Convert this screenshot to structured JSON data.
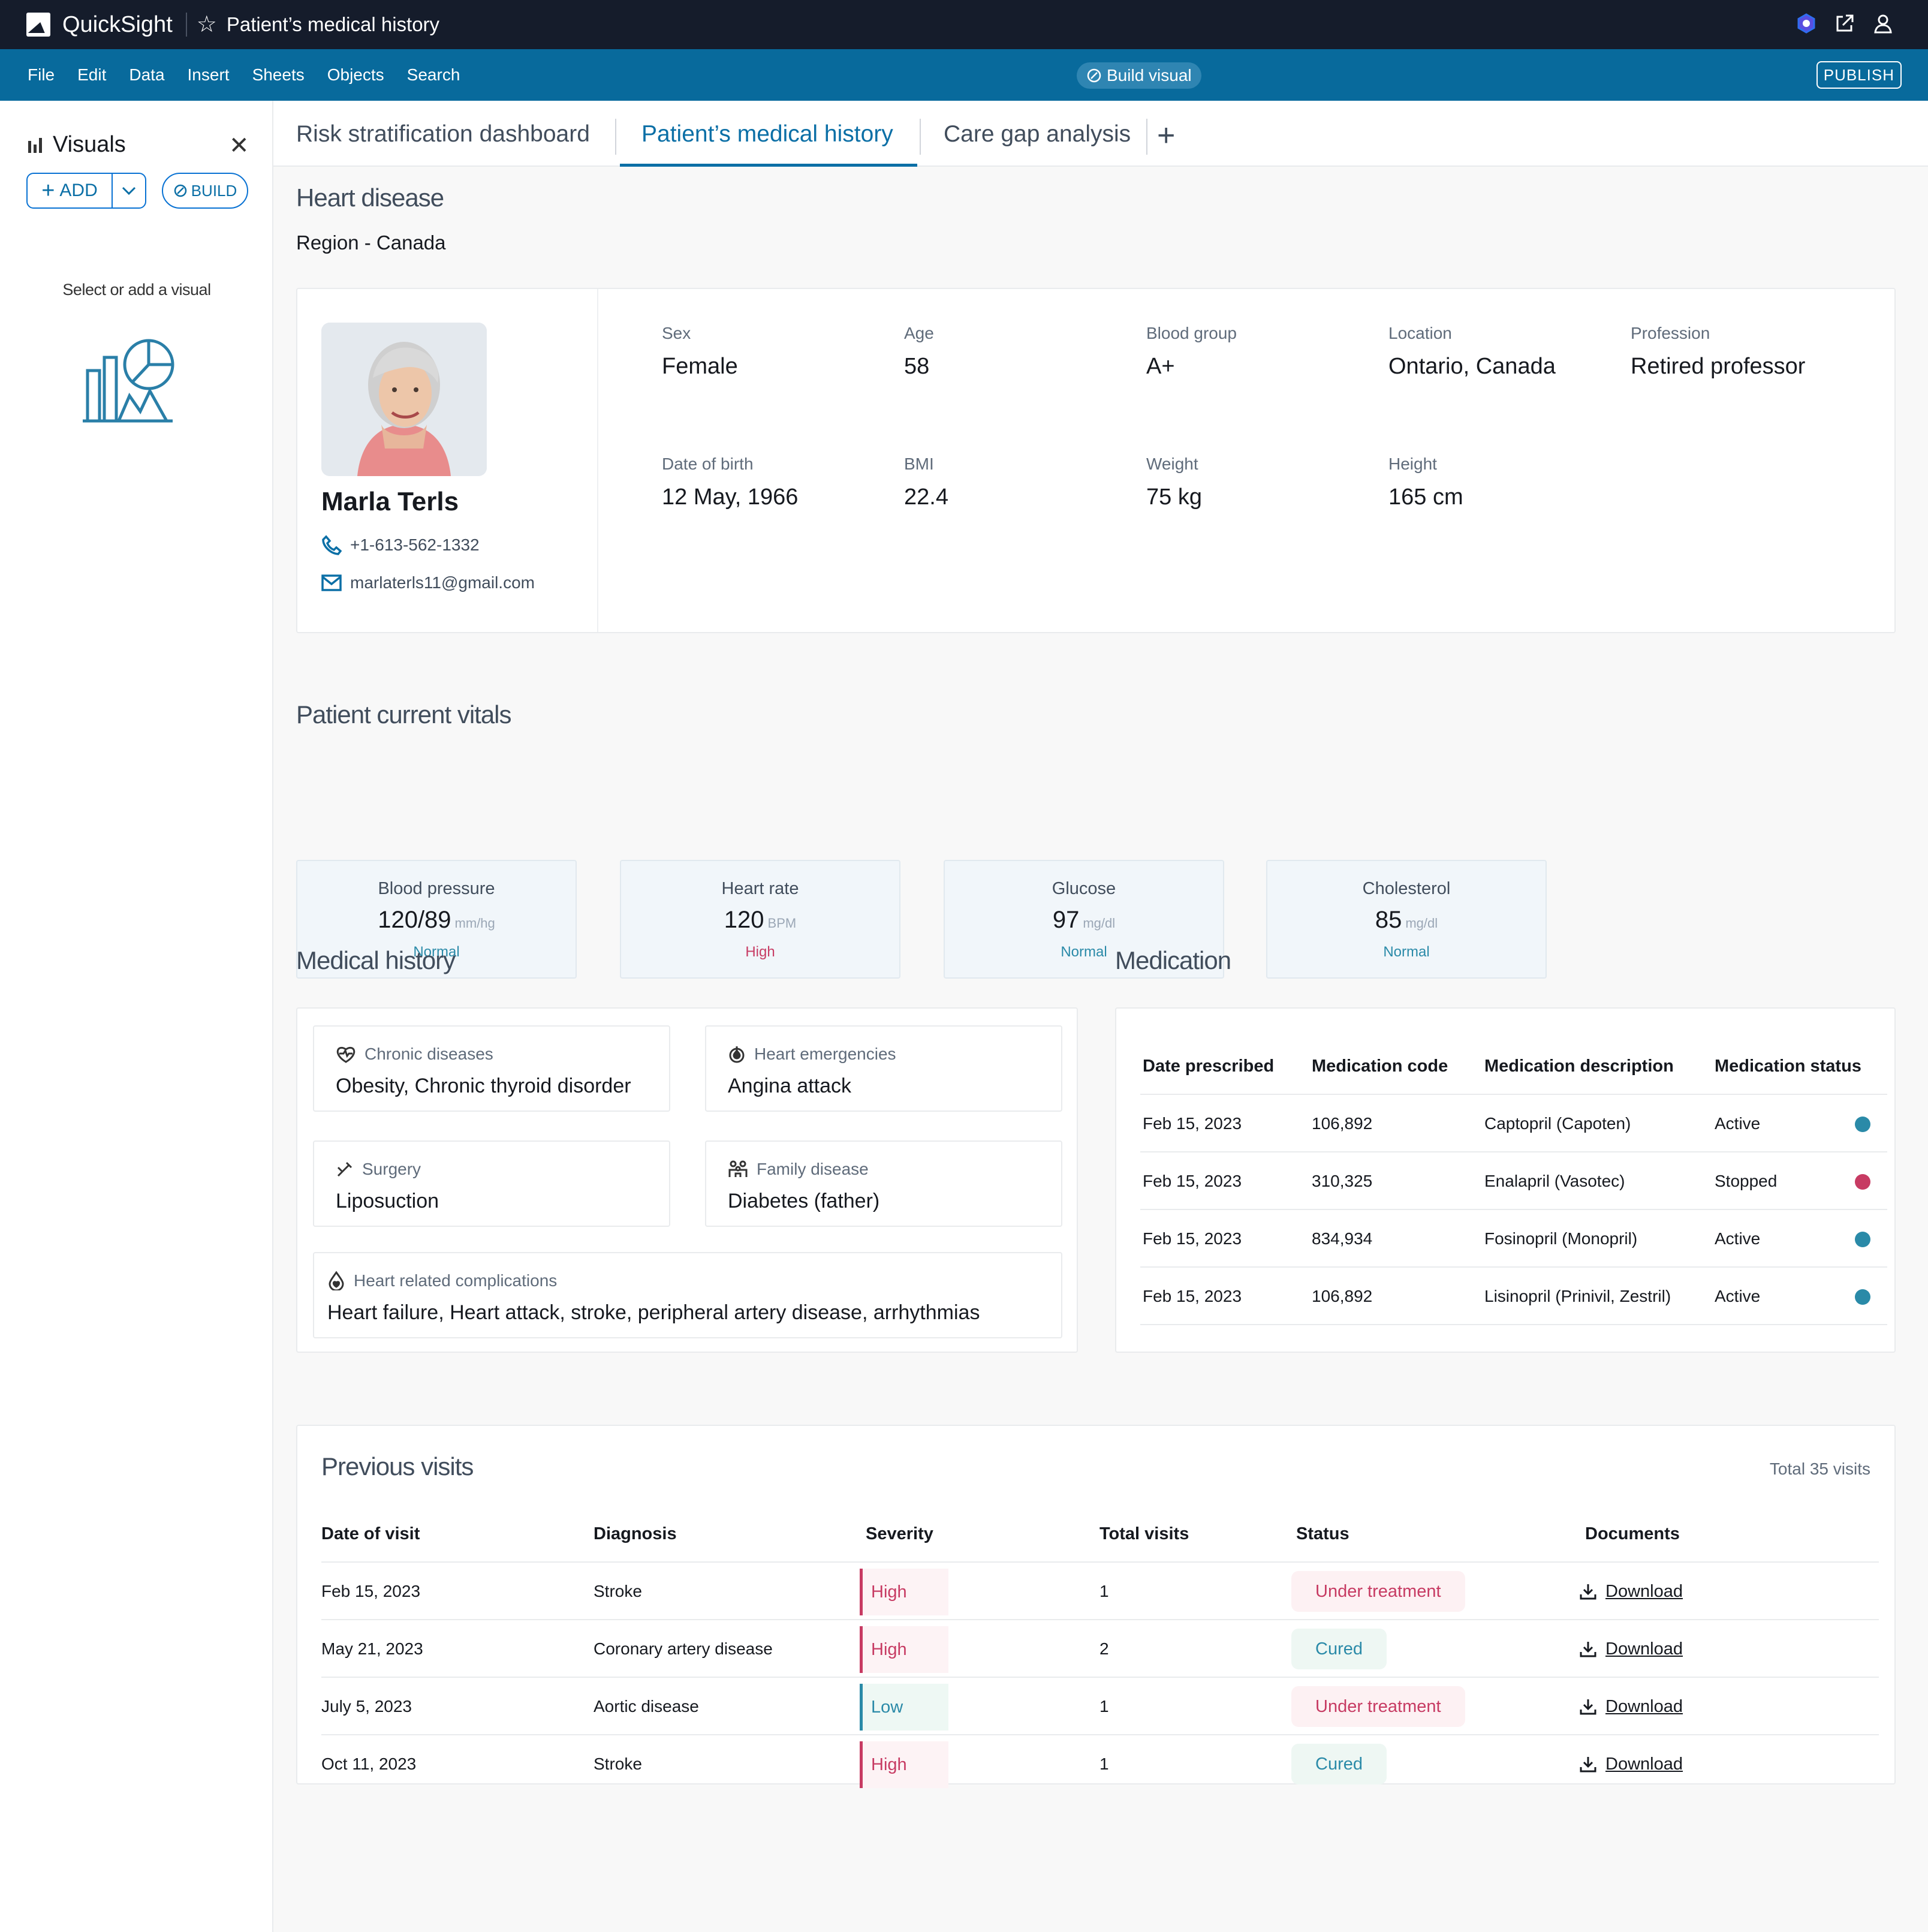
{
  "titlebar": {
    "app_name": "QuickSight",
    "doc_title": "Patient’s medical history"
  },
  "menubar": {
    "items": [
      "File",
      "Edit",
      "Data",
      "Insert",
      "Sheets",
      "Objects",
      "Search"
    ],
    "build_visual": "Build visual",
    "publish": "PUBLISH"
  },
  "sidebar": {
    "title": "Visuals",
    "add_label": "ADD",
    "build_label": "BUILD",
    "hint": "Select or add a visual"
  },
  "tabs": [
    "Risk stratification dashboard",
    "Patient’s medical history",
    "Care gap analysis"
  ],
  "header": {
    "title": "Heart disease",
    "region": "Region - Canada"
  },
  "patient": {
    "name": "Marla Terls",
    "phone": "+1-613-562-1332",
    "email": "marlaterls11@gmail.com",
    "fields": [
      {
        "label": "Sex",
        "value": "Female"
      },
      {
        "label": "Age",
        "value": "58"
      },
      {
        "label": "Blood group",
        "value": "A+"
      },
      {
        "label": "Location",
        "value": "Ontario, Canada"
      },
      {
        "label": "Profession",
        "value": "Retired professor"
      },
      {
        "label": "Date of birth",
        "value": "12 May, 1966"
      },
      {
        "label": "BMI",
        "value": "22.4"
      },
      {
        "label": "Weight",
        "value": "75 kg"
      },
      {
        "label": "Height",
        "value": "165 cm"
      }
    ]
  },
  "vitals": {
    "title": "Patient current vitals",
    "items": [
      {
        "label": "Blood pressure",
        "value": "120/89",
        "unit": "mm/hg",
        "status": "Normal",
        "status_color": "#2a8aa8"
      },
      {
        "label": "Heart rate",
        "value": "120",
        "unit": "BPM",
        "status": "High",
        "status_color": "#c73b63"
      },
      {
        "label": "Glucose",
        "value": "97",
        "unit": "mg/dl",
        "status": "Normal",
        "status_color": "#2a8aa8"
      },
      {
        "label": "Cholesterol",
        "value": "85",
        "unit": "mg/dl",
        "status": "Normal",
        "status_color": "#2a8aa8"
      }
    ]
  },
  "history": {
    "title": "Medical history",
    "items": [
      {
        "label": "Chronic diseases",
        "value": "Obesity, Chronic thyroid disorder",
        "icon": "heart-pulse-icon"
      },
      {
        "label": "Heart emergencies",
        "value": "Angina attack",
        "icon": "emergency-icon"
      },
      {
        "label": "Surgery",
        "value": "Liposuction",
        "icon": "scalpel-icon"
      },
      {
        "label": "Family disease",
        "value": "Diabetes (father)",
        "icon": "family-icon"
      },
      {
        "label": "Heart related complications",
        "value": "Heart failure, Heart attack, stroke, peripheral artery disease, arrhythmias",
        "icon": "drop-heart-icon"
      }
    ]
  },
  "medication": {
    "title": "Medication",
    "headers": [
      "Date prescribed",
      "Medication code",
      "Medication description",
      "Medication status"
    ],
    "rows": [
      {
        "date": "Feb 15, 2023",
        "code": "106,892",
        "description": "Captopril (Capoten)",
        "status": "Active",
        "dot_color": "#2a8aa8"
      },
      {
        "date": "Feb 15, 2023",
        "code": "310,325",
        "description": "Enalapril (Vasotec)",
        "status": "Stopped",
        "dot_color": "#c73b63"
      },
      {
        "date": "Feb 15, 2023",
        "code": "834,934",
        "description": "Fosinopril (Monopril)",
        "status": "Active",
        "dot_color": "#2a8aa8"
      },
      {
        "date": "Feb 15, 2023",
        "code": "106,892",
        "description": "Lisinopril (Prinivil, Zestril)",
        "status": "Active",
        "dot_color": "#2a8aa8"
      }
    ]
  },
  "visits": {
    "title": "Previous visits",
    "total": "Total 35 visits",
    "headers": [
      "Date of visit",
      "Diagnosis",
      "Severity",
      "Total visits",
      "Status",
      "Documents"
    ],
    "rows": [
      {
        "date": "Feb 15, 2023",
        "diagnosis": "Stroke",
        "severity": "High",
        "total": "1",
        "status": "Under treatment",
        "document": "Download"
      },
      {
        "date": "May 21, 2023",
        "diagnosis": "Coronary artery disease",
        "severity": "High",
        "total": "2",
        "status": "Cured",
        "document": "Download"
      },
      {
        "date": "July 5, 2023",
        "diagnosis": "Aortic disease",
        "severity": "Low",
        "total": "1",
        "status": "Under treatment",
        "document": "Download"
      },
      {
        "date": "Oct 11, 2023",
        "diagnosis": "Stroke",
        "severity": "High",
        "total": "1",
        "status": "Cured",
        "document": "Download"
      }
    ],
    "colors": {
      "high": "#c73b63",
      "low": "#2a8aa8",
      "cured": "#2a8aa8",
      "treatment": "#c73b63"
    }
  }
}
